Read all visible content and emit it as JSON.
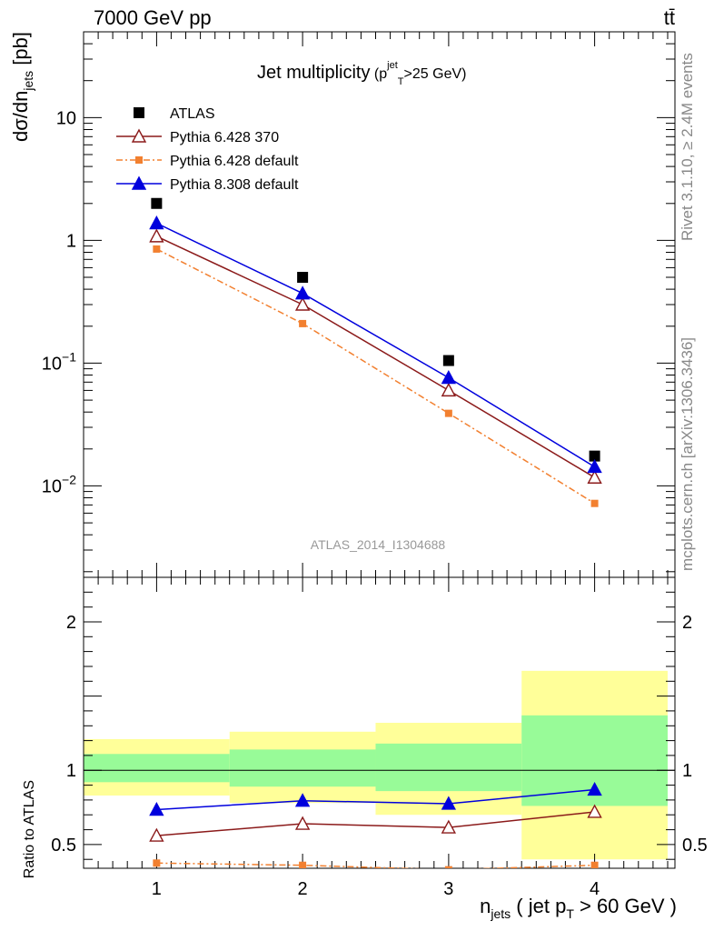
{
  "header": {
    "left": "7000 GeV pp",
    "right": "tt̄"
  },
  "side_text": {
    "rivet": "Rivet 3.1.10, ≥ 2.4M events",
    "mcplots": "mcplots.cern.ch [arXiv:1306.3436]"
  },
  "chart_data": [
    {
      "type": "line",
      "title": "Jet multiplicity",
      "title_suffix": {
        "p": "p",
        "sup": "jet",
        "sub": "T",
        "rest": ">25 GeV)",
        "open": "("
      },
      "watermark": "ATLAS_2014_I1304688",
      "ylabel": {
        "main": "dσ/dn",
        "sub": "jets",
        "unit": " [pb]"
      },
      "yscale": "log",
      "ylim": [
        0.0018,
        50
      ],
      "xlim": [
        0.5,
        4.55
      ],
      "x_ticks": [
        1,
        2,
        3,
        4
      ],
      "y_major_ticks": [
        {
          "value": 0.01,
          "base": "10",
          "exp": "−2"
        },
        {
          "value": 0.1,
          "base": "10",
          "exp": "−1"
        },
        {
          "value": 1,
          "base": "1",
          "exp": ""
        },
        {
          "value": 10,
          "base": "10",
          "exp": ""
        }
      ],
      "legend_position": "top-left",
      "series": [
        {
          "name": "ATLAS",
          "x": [
            1,
            2,
            3,
            4
          ],
          "values": [
            2.0,
            0.5,
            0.105,
            0.0175
          ],
          "color": "#000000",
          "marker": "square-filled",
          "line": "none"
        },
        {
          "name": "Pythia 6.428 370",
          "x": [
            1,
            2,
            3,
            4
          ],
          "values": [
            1.08,
            0.3,
            0.06,
            0.0117
          ],
          "color": "#8b1a1a",
          "marker": "triangle-open",
          "line": "solid"
        },
        {
          "name": "Pythia 6.428 default",
          "x": [
            1,
            2,
            3,
            4
          ],
          "values": [
            0.85,
            0.21,
            0.039,
            0.0072
          ],
          "color": "#f28030",
          "marker": "square-filled",
          "line": "dashdot"
        },
        {
          "name": "Pythia 8.308 default",
          "x": [
            1,
            2,
            3,
            4
          ],
          "values": [
            1.38,
            0.37,
            0.076,
            0.0143
          ],
          "color": "#0000dd",
          "marker": "triangle-filled",
          "line": "solid"
        }
      ]
    },
    {
      "type": "line",
      "ylabel": "Ratio to ATLAS",
      "xlabel": {
        "n": "n",
        "sub": "jets",
        "mid": " ( jet p",
        "sub2": "T",
        "end": " > 60 GeV )"
      },
      "ylim": [
        0.34,
        2.3
      ],
      "xlim": [
        0.5,
        4.55
      ],
      "x_ticks": [
        1,
        2,
        3,
        4
      ],
      "y_labels": [
        0.5,
        1,
        2
      ],
      "reference_line": 1,
      "bands": [
        {
          "x": [
            0.5,
            1.5
          ],
          "inner": [
            0.92,
            1.11
          ],
          "outer": [
            0.83,
            1.21
          ]
        },
        {
          "x": [
            1.5,
            2.5
          ],
          "inner": [
            0.89,
            1.14
          ],
          "outer": [
            0.78,
            1.26
          ]
        },
        {
          "x": [
            2.5,
            3.5
          ],
          "inner": [
            0.86,
            1.18
          ],
          "outer": [
            0.7,
            1.32
          ]
        },
        {
          "x": [
            3.5,
            4.5
          ],
          "inner": [
            0.76,
            1.37
          ],
          "outer": [
            0.4,
            1.67
          ]
        }
      ],
      "band_colors": {
        "inner": "#98fb98",
        "outer": "#ffff99"
      },
      "series": [
        {
          "name": "Pythia 6.428 370",
          "x": [
            1,
            2,
            3,
            4
          ],
          "values": [
            0.56,
            0.64,
            0.615,
            0.72
          ],
          "color": "#8b1a1a",
          "marker": "triangle-open",
          "line": "solid"
        },
        {
          "name": "Pythia 6.428 default",
          "x": [
            1,
            2,
            3,
            4
          ],
          "values": [
            0.375,
            0.36,
            0.33,
            0.36
          ],
          "color": "#f28030",
          "marker": "square-filled",
          "line": "dashdot"
        },
        {
          "name": "Pythia 8.308 default",
          "x": [
            1,
            2,
            3,
            4
          ],
          "values": [
            0.735,
            0.795,
            0.775,
            0.87
          ],
          "color": "#0000dd",
          "marker": "triangle-filled",
          "line": "solid"
        }
      ]
    }
  ]
}
